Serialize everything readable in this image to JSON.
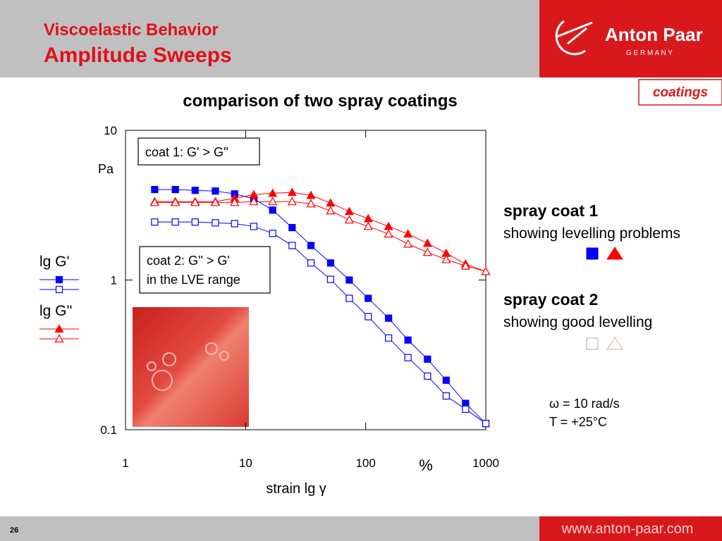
{
  "header": {
    "title": "Viscoelastic Behavior",
    "subtitle": "Amplitude Sweeps",
    "brand": "Anton Paar",
    "brand_sub": "G E R M A N Y",
    "tag": "coatings"
  },
  "chart_data": {
    "type": "line",
    "title": "comparison of two spray coatings",
    "x": [
      1.75,
      2.6,
      3.8,
      5.6,
      8.1,
      11.7,
      16.8,
      24.4,
      35,
      51,
      73,
      105,
      155,
      225,
      327,
      468,
      679,
      1000
    ],
    "xlim": [
      1,
      1000
    ],
    "xticks": [
      1,
      10,
      100,
      1000
    ],
    "xlog": true,
    "ylim": [
      0.1,
      10
    ],
    "yticks": [
      0.1,
      1,
      10
    ],
    "ylog": true,
    "x_label": "strain   lg γ",
    "x_unit": "%",
    "y_unit": "Pa",
    "series": [
      {
        "color": "#0000ff",
        "marker": "square",
        "filled": true,
        "values": [
          4.02,
          4.02,
          3.97,
          3.93,
          3.76,
          3.49,
          2.93,
          2.24,
          1.7,
          1.3,
          1.0,
          0.754,
          0.556,
          0.397,
          0.296,
          0.214,
          0.15,
          0.11
        ]
      },
      {
        "color": "#ff0000",
        "marker": "triangle",
        "filled": true,
        "values": [
          3.34,
          3.34,
          3.34,
          3.34,
          3.52,
          3.72,
          3.8,
          3.85,
          3.68,
          3.27,
          2.87,
          2.57,
          2.28,
          2.03,
          1.76,
          1.51,
          1.28,
          1.14
        ]
      },
      {
        "color": "#0000ff",
        "marker": "square",
        "filled": false,
        "values": [
          2.44,
          2.44,
          2.44,
          2.41,
          2.38,
          2.28,
          2.05,
          1.7,
          1.3,
          1.01,
          0.754,
          0.569,
          0.41,
          0.303,
          0.228,
          0.168,
          0.137,
          0.11
        ]
      },
      {
        "color": "#ff0000",
        "marker": "triangle",
        "filled": false,
        "values": [
          3.3,
          3.3,
          3.3,
          3.3,
          3.3,
          3.34,
          3.34,
          3.34,
          3.23,
          2.9,
          2.52,
          2.28,
          2.03,
          1.74,
          1.53,
          1.37,
          1.24,
          1.14
        ]
      }
    ],
    "annotations": [
      {
        "lines": [
          "coat 1: G' > G''"
        ]
      },
      {
        "lines": [
          "coat 2: G'' > G'",
          "in the LVE range"
        ]
      }
    ],
    "legend": [
      {
        "label": "lg G'",
        "series": [
          0,
          2
        ]
      },
      {
        "label": "lg G''",
        "series": [
          1,
          3
        ]
      }
    ]
  },
  "coats": [
    {
      "name": "spray coat 1",
      "note": "showing levelling problems",
      "series": [
        0,
        1
      ]
    },
    {
      "name": "spray coat 2",
      "note": "showing good levelling",
      "series": [
        2,
        3
      ]
    }
  ],
  "conditions": [
    "ω = 10 rad/s",
    "T = +25°C"
  ],
  "footer": {
    "page": "26",
    "url": "www.anton-paar.com"
  }
}
